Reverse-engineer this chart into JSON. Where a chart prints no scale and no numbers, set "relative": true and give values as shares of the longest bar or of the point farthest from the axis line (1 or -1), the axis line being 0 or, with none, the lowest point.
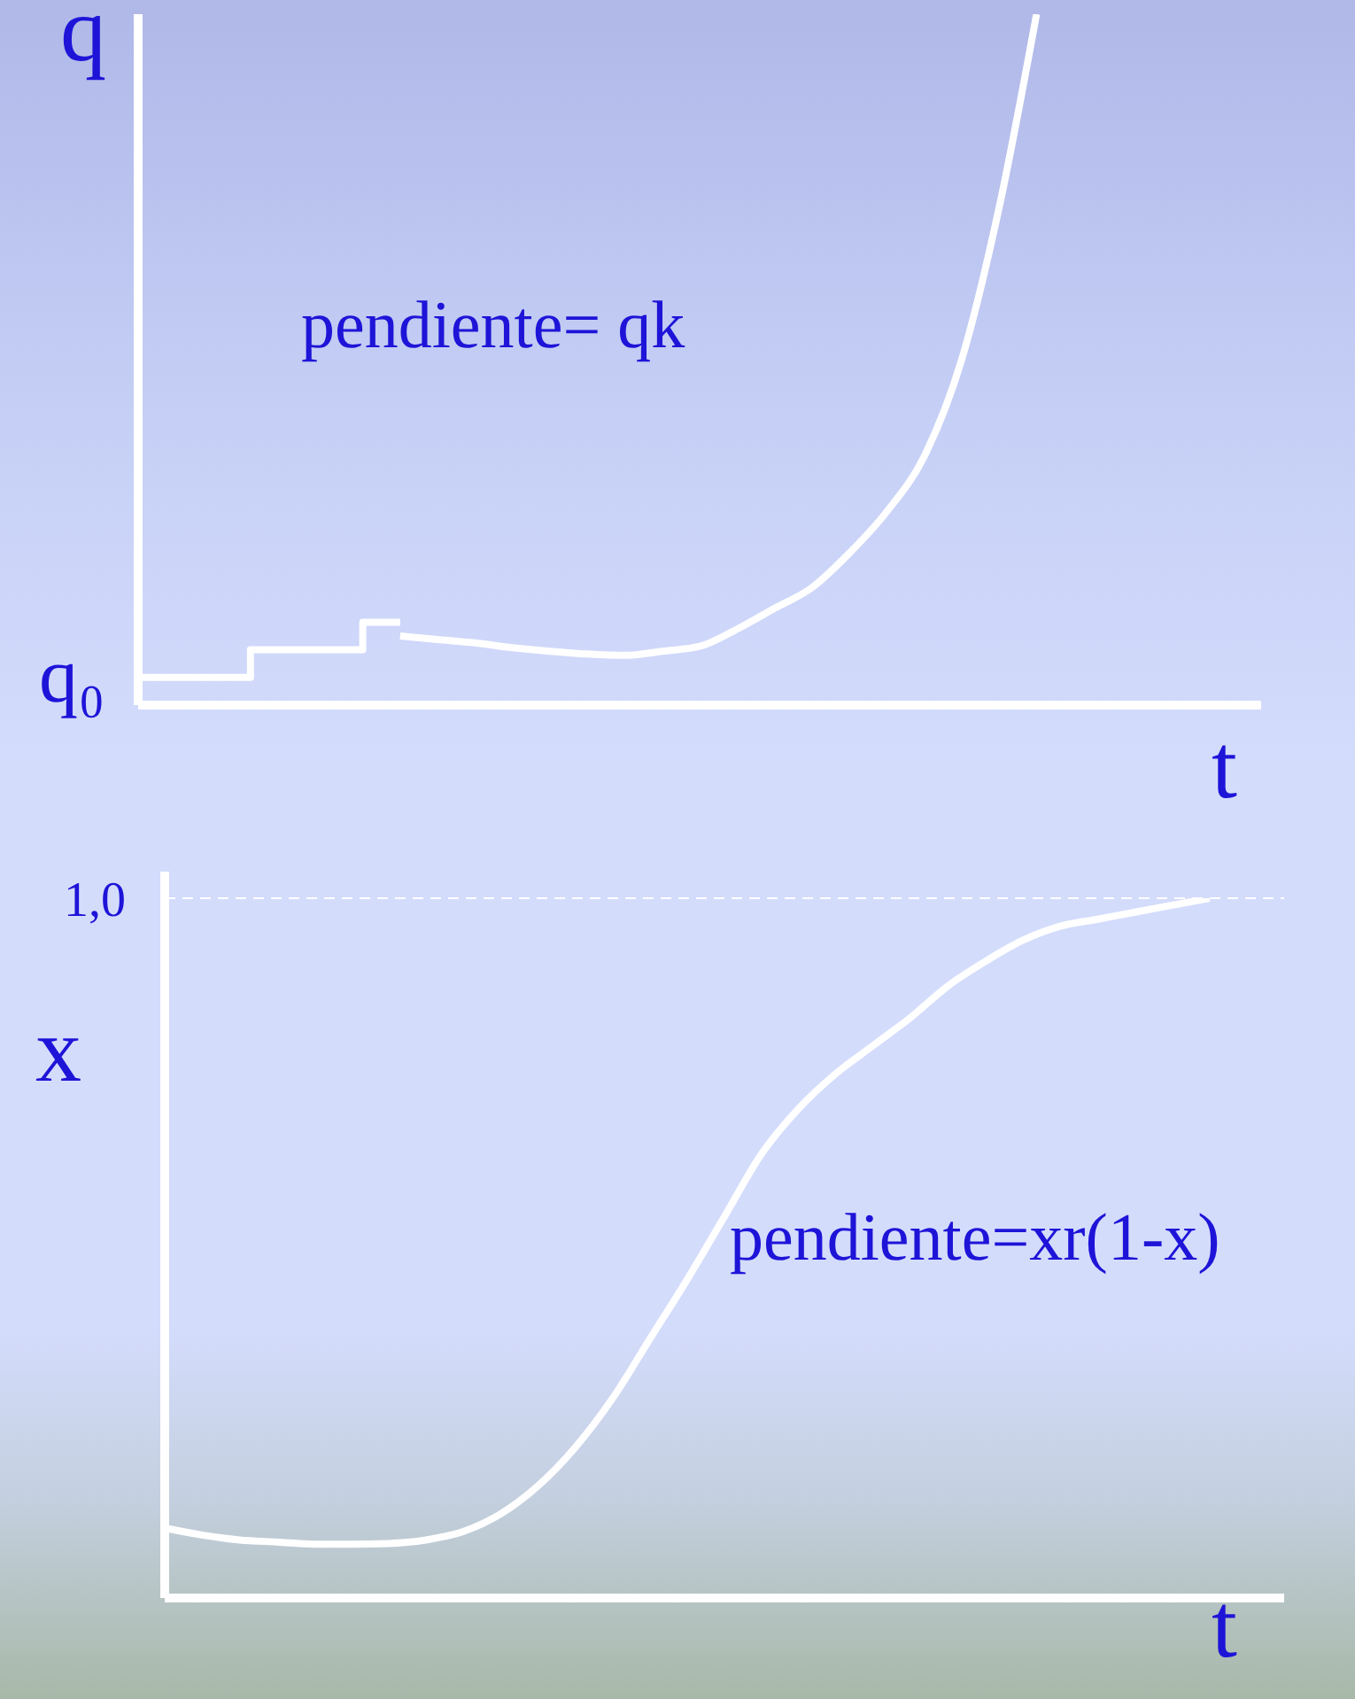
{
  "chart_data": [
    {
      "type": "line",
      "ylabel": "q",
      "xlabel": "t",
      "relative": true,
      "categories": [
        null,
        null,
        null,
        null,
        null,
        null,
        null,
        null,
        null,
        null,
        null,
        null,
        null,
        null,
        null,
        null,
        null,
        null,
        null,
        null,
        null,
        null,
        null,
        null,
        null,
        null,
        null,
        null,
        null,
        null,
        null
      ],
      "series": [
        {
          "type": "step",
          "color": "#ffffff",
          "values": [
            0.04,
            0.04,
            0.04,
            0.08,
            0.08,
            0.08,
            0.12,
            0.12,
            null,
            null,
            null,
            null,
            null,
            null,
            null,
            null,
            null,
            null,
            null,
            null,
            null,
            null,
            null,
            null,
            null,
            null,
            null,
            null,
            null,
            null,
            null
          ]
        },
        {
          "type": "line",
          "color": "#ffffff",
          "values": [
            null,
            null,
            null,
            null,
            null,
            null,
            null,
            0.1,
            0.095,
            0.09,
            0.083,
            0.078,
            0.074,
            0.072,
            0.078,
            0.085,
            0.11,
            0.14,
            0.17,
            0.22,
            0.28,
            0.36,
            0.5,
            0.72,
            1,
            null,
            null,
            null,
            null,
            null,
            null
          ]
        }
      ],
      "annotations": [
        "pendiente= qk",
        "q₀"
      ]
    },
    {
      "type": "line",
      "ylabel": "x",
      "xlabel": "t",
      "relative": true,
      "categories": [
        null,
        null,
        null,
        null,
        null,
        null,
        null,
        null,
        null,
        null,
        null,
        null,
        null,
        null,
        null,
        null,
        null,
        null,
        null,
        null,
        null,
        null,
        null,
        null,
        null,
        null,
        null,
        null,
        null,
        null,
        null
      ],
      "series": [
        {
          "type": "line",
          "color": "#ffffff",
          "values": [
            0.1,
            0.09,
            0.083,
            0.08,
            0.077,
            0.077,
            0.078,
            0.083,
            0.095,
            0.12,
            0.16,
            0.215,
            0.285,
            0.37,
            0.455,
            0.545,
            0.635,
            0.7,
            0.75,
            0.79,
            0.83,
            0.875,
            0.91,
            0.94,
            0.96,
            0.97,
            0.98,
            0.99,
            1,
            null,
            null
          ]
        }
      ],
      "ref_lines": [
        {
          "axis": "y",
          "value": 1,
          "label": "1,0",
          "color": "#ffffff",
          "line_style": "dashed"
        }
      ],
      "annotations": [
        "pendiente=xr(1-x)"
      ]
    }
  ]
}
